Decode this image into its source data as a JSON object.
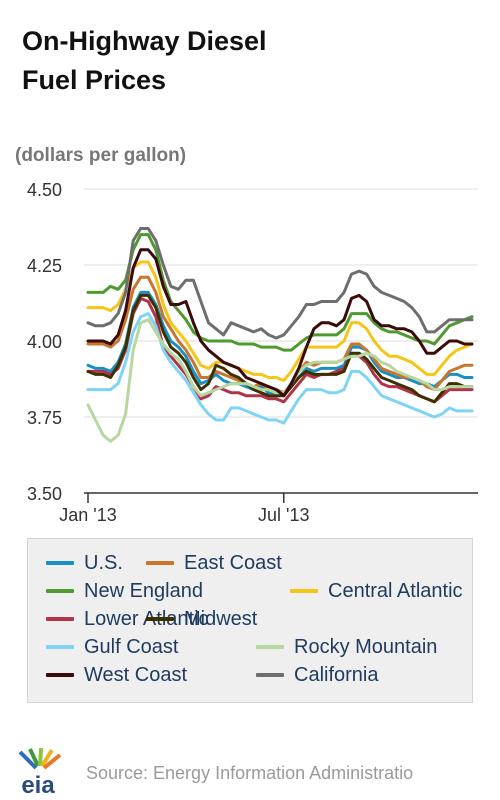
{
  "title_line1": "On-Highway Diesel",
  "title_line2": "Fuel Prices",
  "units_label": "(dollars per gallon)",
  "source": "Source: Energy Information Administratio",
  "logo_text": "eia",
  "colors": {
    "grid": "#dddddd",
    "axis": "#333333",
    "tick_text": "#333333"
  },
  "chart_data": {
    "type": "line",
    "title": "On-Highway Diesel Fuel Prices",
    "ylabel": "(dollars per gallon)",
    "ylim": [
      3.5,
      4.5
    ],
    "yticks": [
      "3.50",
      "3.75",
      "4.00",
      "4.25",
      "4.50"
    ],
    "x_tick_labels": [
      "Jan '13",
      "Jul '13"
    ],
    "x_tick_weeks": [
      0,
      26
    ],
    "grid": true,
    "legend_position": "bottom",
    "x_weeks": [
      0,
      1,
      2,
      3,
      4,
      5,
      6,
      7,
      8,
      9,
      10,
      11,
      12,
      13,
      14,
      15,
      16,
      17,
      18,
      19,
      20,
      21,
      22,
      23,
      24,
      25,
      26,
      27,
      28,
      29,
      30,
      31,
      32,
      33,
      34,
      35,
      36,
      37,
      38,
      39,
      40,
      41,
      42,
      43,
      44,
      45,
      46,
      47,
      48,
      49,
      50,
      51
    ],
    "series": [
      {
        "name": "U.S.",
        "color": "#1a8fc4",
        "values": [
          3.92,
          3.91,
          3.91,
          3.9,
          3.93,
          3.99,
          4.11,
          4.16,
          4.16,
          4.12,
          4.05,
          4.0,
          3.98,
          3.95,
          3.9,
          3.86,
          3.87,
          3.89,
          3.87,
          3.86,
          3.86,
          3.85,
          3.84,
          3.85,
          3.83,
          3.83,
          3.82,
          3.85,
          3.88,
          3.91,
          3.9,
          3.91,
          3.91,
          3.91,
          3.92,
          3.98,
          3.98,
          3.97,
          3.93,
          3.9,
          3.89,
          3.88,
          3.88,
          3.87,
          3.86,
          3.86,
          3.85,
          3.87,
          3.89,
          3.89,
          3.88,
          3.88
        ]
      },
      {
        "name": "East Coast",
        "color": "#c8752e",
        "values": [
          3.99,
          3.99,
          3.99,
          3.98,
          4.0,
          4.07,
          4.17,
          4.21,
          4.21,
          4.16,
          4.08,
          4.04,
          4.0,
          3.97,
          3.93,
          3.88,
          3.88,
          3.9,
          3.89,
          3.88,
          3.87,
          3.86,
          3.85,
          3.86,
          3.84,
          3.84,
          3.83,
          3.86,
          3.9,
          3.93,
          3.92,
          3.93,
          3.93,
          3.93,
          3.94,
          3.99,
          3.99,
          3.97,
          3.94,
          3.91,
          3.9,
          3.89,
          3.88,
          3.88,
          3.87,
          3.85,
          3.84,
          3.87,
          3.9,
          3.91,
          3.92,
          3.92
        ]
      },
      {
        "name": "New England",
        "color": "#4f9a2f",
        "values": [
          4.16,
          4.16,
          4.16,
          4.18,
          4.17,
          4.2,
          4.3,
          4.35,
          4.35,
          4.3,
          4.2,
          4.13,
          4.1,
          4.07,
          4.03,
          4.01,
          4.0,
          4.0,
          4.0,
          4.0,
          3.99,
          3.99,
          3.99,
          3.98,
          3.98,
          3.98,
          3.97,
          3.97,
          3.99,
          4.01,
          4.02,
          4.02,
          4.02,
          4.02,
          4.04,
          4.09,
          4.09,
          4.09,
          4.06,
          4.04,
          4.03,
          4.03,
          4.02,
          4.01,
          4.0,
          4.0,
          3.99,
          4.02,
          4.05,
          4.06,
          4.07,
          4.08
        ]
      },
      {
        "name": "Central Atlantic",
        "color": "#f5c518",
        "values": [
          4.11,
          4.11,
          4.11,
          4.1,
          4.12,
          4.17,
          4.24,
          4.26,
          4.26,
          4.21,
          4.12,
          4.06,
          4.03,
          4.0,
          3.96,
          3.92,
          3.91,
          3.93,
          3.93,
          3.92,
          3.91,
          3.9,
          3.89,
          3.89,
          3.88,
          3.88,
          3.87,
          3.9,
          3.94,
          3.98,
          3.98,
          3.98,
          3.98,
          3.98,
          4.0,
          4.06,
          4.06,
          4.04,
          4.0,
          3.97,
          3.95,
          3.95,
          3.94,
          3.93,
          3.91,
          3.89,
          3.89,
          3.92,
          3.95,
          3.97,
          3.98,
          3.99
        ]
      },
      {
        "name": "Lower Atlantic",
        "color": "#b0334a",
        "values": [
          3.9,
          3.9,
          3.9,
          3.89,
          3.91,
          3.97,
          4.09,
          4.14,
          4.13,
          4.08,
          3.98,
          3.95,
          3.92,
          3.89,
          3.85,
          3.81,
          3.82,
          3.85,
          3.84,
          3.83,
          3.83,
          3.82,
          3.82,
          3.82,
          3.81,
          3.81,
          3.8,
          3.83,
          3.86,
          3.89,
          3.88,
          3.89,
          3.89,
          3.9,
          3.91,
          3.96,
          3.95,
          3.93,
          3.89,
          3.86,
          3.85,
          3.85,
          3.84,
          3.83,
          3.82,
          3.81,
          3.8,
          3.82,
          3.84,
          3.84,
          3.84,
          3.84
        ]
      },
      {
        "name": "Midwest",
        "color": "#3d3000",
        "values": [
          3.9,
          3.89,
          3.89,
          3.88,
          3.92,
          3.98,
          4.1,
          4.15,
          4.15,
          4.11,
          4.03,
          3.98,
          3.96,
          3.93,
          3.88,
          3.84,
          3.86,
          3.92,
          3.91,
          3.89,
          3.88,
          3.86,
          3.84,
          3.83,
          3.82,
          3.82,
          3.82,
          3.85,
          3.88,
          3.9,
          3.89,
          3.89,
          3.89,
          3.89,
          3.9,
          3.96,
          3.96,
          3.94,
          3.91,
          3.88,
          3.87,
          3.86,
          3.85,
          3.84,
          3.82,
          3.81,
          3.8,
          3.83,
          3.86,
          3.86,
          3.85,
          3.85
        ]
      },
      {
        "name": "Gulf Coast",
        "color": "#7fd3f5",
        "values": [
          3.84,
          3.84,
          3.84,
          3.84,
          3.86,
          3.93,
          4.03,
          4.08,
          4.09,
          4.05,
          3.97,
          3.93,
          3.9,
          3.87,
          3.83,
          3.79,
          3.76,
          3.74,
          3.74,
          3.78,
          3.78,
          3.77,
          3.76,
          3.75,
          3.74,
          3.74,
          3.73,
          3.77,
          3.81,
          3.84,
          3.84,
          3.84,
          3.83,
          3.83,
          3.84,
          3.9,
          3.9,
          3.88,
          3.85,
          3.82,
          3.81,
          3.8,
          3.79,
          3.78,
          3.77,
          3.76,
          3.75,
          3.76,
          3.78,
          3.77,
          3.77,
          3.77
        ]
      },
      {
        "name": "Rocky Mountain",
        "color": "#b7d7a0",
        "values": [
          3.79,
          3.74,
          3.69,
          3.67,
          3.69,
          3.76,
          3.97,
          4.06,
          4.07,
          4.03,
          3.99,
          3.96,
          3.94,
          3.9,
          3.85,
          3.82,
          3.83,
          3.84,
          3.85,
          3.86,
          3.86,
          3.86,
          3.85,
          3.84,
          3.84,
          3.83,
          3.83,
          3.86,
          3.9,
          3.92,
          3.93,
          3.93,
          3.93,
          3.93,
          3.94,
          3.95,
          3.95,
          3.96,
          3.95,
          3.93,
          3.92,
          3.9,
          3.89,
          3.88,
          3.87,
          3.86,
          3.84,
          3.84,
          3.85,
          3.85,
          3.85,
          3.85
        ]
      },
      {
        "name": "West Coast",
        "color": "#3b0a0a",
        "values": [
          4.0,
          4.0,
          4.0,
          3.99,
          4.02,
          4.1,
          4.24,
          4.3,
          4.3,
          4.27,
          4.18,
          4.12,
          4.12,
          4.13,
          4.06,
          4.0,
          3.97,
          3.95,
          3.93,
          3.92,
          3.91,
          3.88,
          3.87,
          3.86,
          3.85,
          3.84,
          3.82,
          3.86,
          3.91,
          3.98,
          4.04,
          4.06,
          4.06,
          4.05,
          4.07,
          4.14,
          4.15,
          4.13,
          4.07,
          4.05,
          4.05,
          4.04,
          4.04,
          4.03,
          4.0,
          3.96,
          3.96,
          3.98,
          4.0,
          4.0,
          3.99,
          3.99
        ]
      },
      {
        "name": "California",
        "color": "#6e6e6e",
        "values": [
          4.06,
          4.05,
          4.05,
          4.06,
          4.09,
          4.16,
          4.33,
          4.37,
          4.37,
          4.33,
          4.25,
          4.18,
          4.17,
          4.2,
          4.2,
          4.13,
          4.06,
          4.04,
          4.02,
          4.06,
          4.05,
          4.04,
          4.03,
          4.04,
          4.02,
          4.01,
          4.02,
          4.05,
          4.08,
          4.12,
          4.12,
          4.13,
          4.13,
          4.13,
          4.16,
          4.22,
          4.23,
          4.22,
          4.18,
          4.16,
          4.15,
          4.14,
          4.13,
          4.11,
          4.08,
          4.03,
          4.03,
          4.05,
          4.07,
          4.07,
          4.07,
          4.07
        ]
      }
    ]
  }
}
